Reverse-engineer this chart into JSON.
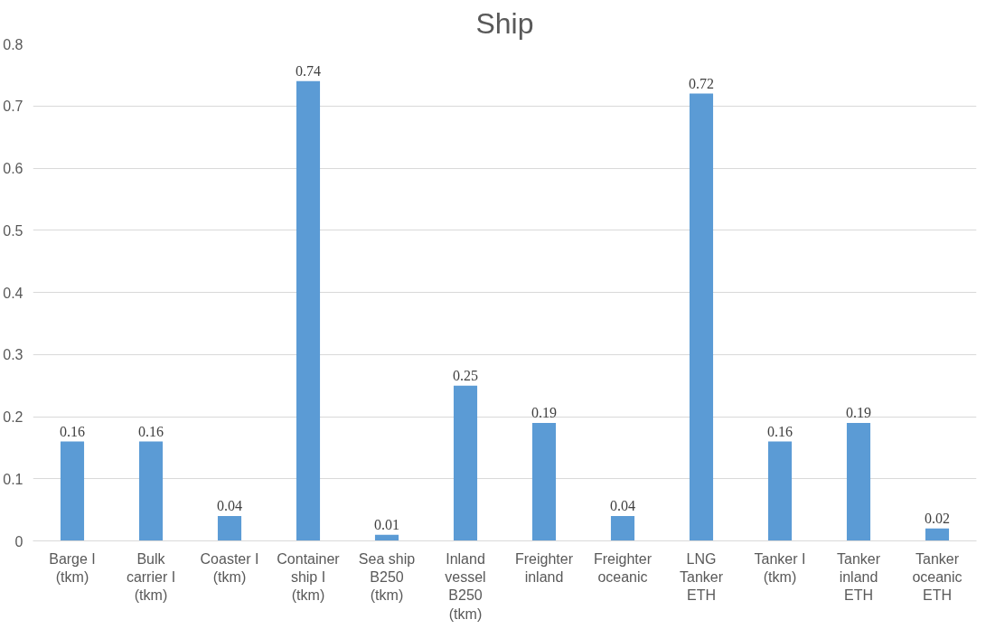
{
  "chart_data": {
    "type": "bar",
    "title": "Ship",
    "categories": [
      "Barge I (tkm)",
      "Bulk carrier I (tkm)",
      "Coaster I (tkm)",
      "Container ship I (tkm)",
      "Sea ship B250 (tkm)",
      "Inland vessel B250 (tkm)",
      "Freighter inland",
      "Freighter oceanic",
      "LNG Tanker ETH",
      "Tanker I (tkm)",
      "Tanker inland ETH",
      "Tanker oceanic ETH"
    ],
    "values": [
      0.16,
      0.16,
      0.04,
      0.74,
      0.01,
      0.25,
      0.19,
      0.04,
      0.72,
      0.16,
      0.19,
      0.02
    ],
    "color": "#5b9bd5",
    "ylim": [
      0,
      0.8
    ],
    "yticks": [
      {
        "value": 0,
        "label": "0"
      },
      0.1,
      0.2,
      0.3,
      0.4,
      0.5,
      0.6,
      0.7,
      0.8
    ],
    "grid": "y",
    "data_labels": true
  }
}
